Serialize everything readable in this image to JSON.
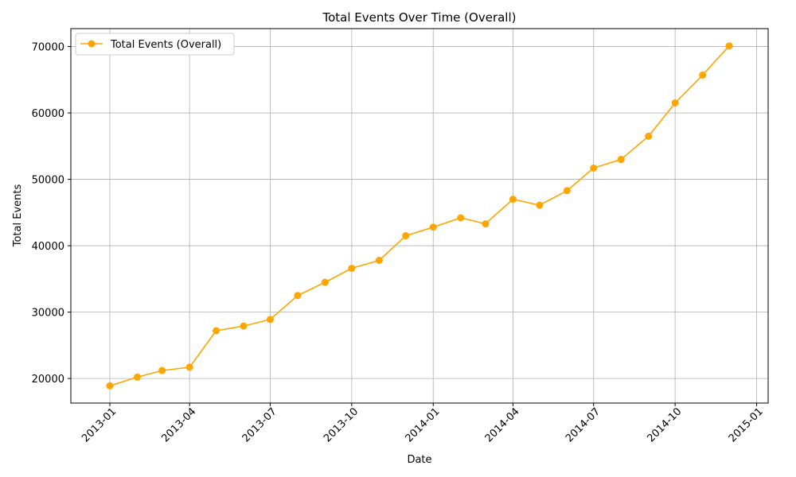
{
  "chart_data": {
    "type": "line",
    "title": "Total Events Over Time (Overall)",
    "xlabel": "Date",
    "ylabel": "Total Events",
    "x": [
      "2013-01-01",
      "2013-02-01",
      "2013-03-01",
      "2013-04-01",
      "2013-05-01",
      "2013-06-01",
      "2013-07-01",
      "2013-08-01",
      "2013-09-01",
      "2013-10-01",
      "2013-11-01",
      "2013-12-01",
      "2014-01-01",
      "2014-02-01",
      "2014-03-01",
      "2014-04-01",
      "2014-05-01",
      "2014-06-01",
      "2014-07-01",
      "2014-08-01",
      "2014-09-01",
      "2014-10-01",
      "2014-11-01",
      "2014-12-01"
    ],
    "series": [
      {
        "name": "Total Events (Overall)",
        "color": "#FFA500",
        "values": [
          18900,
          20200,
          21200,
          21700,
          27200,
          27900,
          28900,
          32500,
          34500,
          36600,
          37800,
          41500,
          42800,
          44200,
          43300,
          47000,
          46100,
          48300,
          51700,
          53000,
          56500,
          61500,
          65700,
          70100
        ]
      }
    ],
    "xticks": [
      "2013-01",
      "2013-04",
      "2013-07",
      "2013-10",
      "2014-01",
      "2014-04",
      "2014-07",
      "2014-10",
      "2015-01"
    ],
    "yticks": [
      20000,
      30000,
      40000,
      50000,
      60000,
      70000
    ],
    "xlim": [
      "2012-11-18",
      "2015-01-14"
    ],
    "ylim": [
      16300,
      72700
    ],
    "grid": true,
    "legend": "upper-left"
  }
}
